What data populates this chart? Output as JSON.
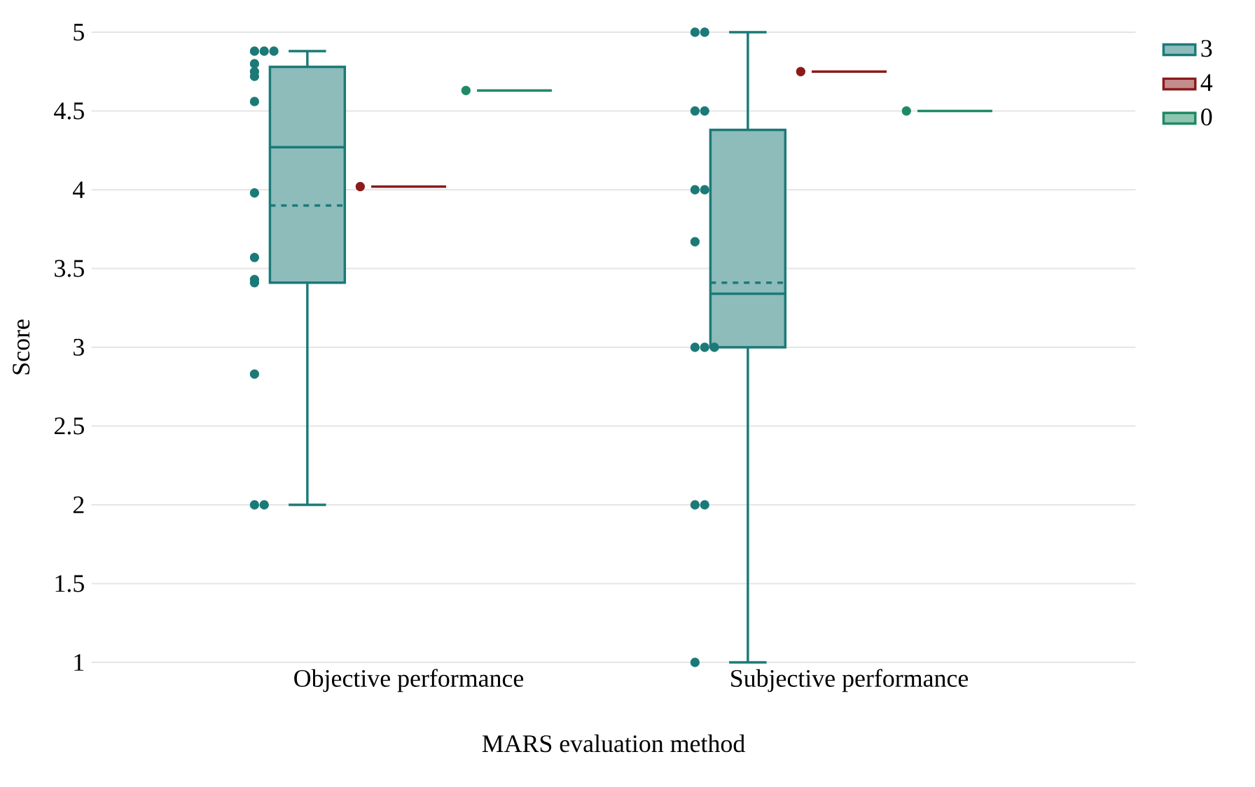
{
  "chart_data": {
    "type": "box",
    "xlabel": "MARS evaluation method",
    "ylabel": "Score",
    "categories": [
      "Objective performance",
      "Subjective performance"
    ],
    "ylim": [
      1,
      5
    ],
    "yticks": [
      1,
      1.5,
      2,
      2.5,
      3,
      3.5,
      4,
      4.5,
      5
    ],
    "grid": "y",
    "legend": "top right",
    "marker": "circle",
    "series": [
      {
        "name": "3",
        "color": "#1b7a78",
        "boxes": [
          {
            "low": 2,
            "q1": 3.41,
            "median": 4.27,
            "q3": 4.78,
            "high": 4.88,
            "mean": 3.9
          },
          {
            "low": 1,
            "q1": 3,
            "median": 3.34,
            "q3": 4.38,
            "high": 5,
            "mean": 3.41
          }
        ]
      },
      {
        "name": "4",
        "color": "#8b1a1a",
        "boxes": [
          {
            "low": 4.02,
            "q1": 4.02,
            "median": 4.02,
            "q3": 4.02,
            "high": 4.02
          },
          {
            "low": 4.75,
            "q1": 4.75,
            "median": 4.75,
            "q3": 4.75,
            "high": 4.75
          }
        ]
      },
      {
        "name": "0",
        "color": "#1e8a64",
        "boxes": [
          {
            "low": 4.63,
            "q1": 4.63,
            "median": 4.63,
            "q3": 4.63,
            "high": 4.63
          },
          {
            "low": 4.5,
            "q1": 4.5,
            "median": 4.5,
            "q3": 4.5,
            "high": 4.5
          }
        ]
      },
      {
        "type": "scatter",
        "color": "#1b7a78",
        "x": [
          "Objective performance",
          "Objective performance",
          "Objective performance",
          "Objective performance",
          "Objective performance",
          "Objective performance",
          "Objective performance",
          "Objective performance",
          "Objective performance",
          "Objective performance",
          "Objective performance",
          "Objective performance",
          "Objective performance",
          "Objective performance",
          "Subjective performance",
          "Subjective performance",
          "Subjective performance",
          "Subjective performance",
          "Subjective performance",
          "Subjective performance",
          "Subjective performance",
          "Subjective performance",
          "Subjective performance",
          "Subjective performance",
          "Subjective performance",
          "Subjective performance",
          "Subjective performance"
        ],
        "values": [
          4.88,
          4.88,
          4.88,
          4.8,
          4.75,
          4.72,
          4.56,
          3.98,
          3.57,
          3.43,
          3.41,
          2.83,
          2,
          2,
          5,
          5,
          4.5,
          4.5,
          4,
          4,
          3.67,
          3,
          3,
          3,
          2,
          2,
          1
        ]
      },
      {
        "type": "scatter",
        "color": "#8b1a1a",
        "x": [
          "Objective performance",
          "Subjective performance"
        ],
        "values": [
          4.02,
          4.75
        ]
      },
      {
        "type": "scatter",
        "color": "#1e8a64",
        "x": [
          "Objective performance",
          "Subjective performance"
        ],
        "values": [
          4.63,
          4.5
        ]
      }
    ]
  }
}
